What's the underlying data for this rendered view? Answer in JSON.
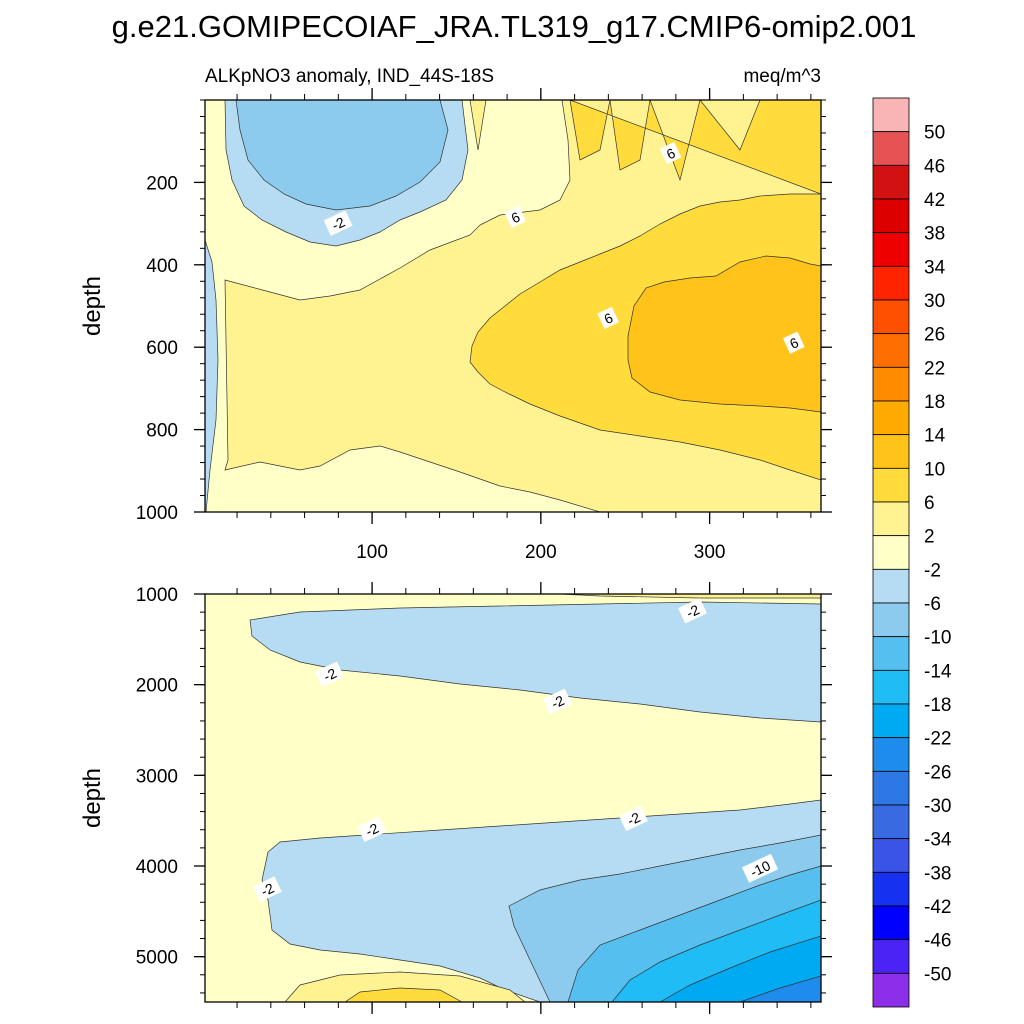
{
  "chart_data": {
    "type": "contour",
    "title": "g.e21.GOMIPECOIAF_JRA.TL319_g17.CMIP6-omip2.001",
    "subtitle_left": "ALKpNO3 anomaly, IND_44S-18S",
    "subtitle_right": "meq/m^3",
    "xlim": [
      1,
      366
    ],
    "colorbar": {
      "levels": [
        50,
        46,
        42,
        38,
        34,
        30,
        26,
        22,
        18,
        14,
        10,
        6,
        2,
        -2,
        -6,
        -10,
        -14,
        -18,
        -22,
        -26,
        -30,
        -34,
        -38,
        -42,
        -46,
        -50
      ],
      "level_labels": [
        "50",
        "46",
        "42",
        "38",
        "34",
        "30",
        "26",
        "22",
        "18",
        "14",
        "10",
        "6",
        "2",
        "-2",
        "-6",
        "-10",
        "-14",
        "-18",
        "-22",
        "-26",
        "-30",
        "-34",
        "-38",
        "-42",
        "-46",
        "-50"
      ],
      "colors": [
        "#F9B4B5",
        "#E65355",
        "#D21112",
        "#DD0000",
        "#EE0000",
        "#FF2400",
        "#FF5000",
        "#FF6E00",
        "#FF8C00",
        "#FFAA00",
        "#FFC31A",
        "#FFDB3C",
        "#FFF290",
        "#FFFFC8",
        "#B5DCF2",
        "#8CCBED",
        "#55BFF0",
        "#20BCF5",
        "#00AAF3",
        "#1E8CEC",
        "#2E78E6",
        "#3A6AE2",
        "#3A54E8",
        "#1632F0",
        "#0000FF",
        "#4B23F5",
        "#8C2EEA"
      ]
    },
    "panels": [
      {
        "name": "upper",
        "ylabel": "depth",
        "ylim": [
          0,
          1000
        ],
        "yticks": [
          200,
          400,
          600,
          800,
          1000
        ],
        "ytick_labels": [
          "200",
          "400",
          "600",
          "800",
          "1000"
        ],
        "xticks": [
          100,
          200,
          300
        ],
        "xtick_labels": [
          "100",
          "200",
          "300"
        ],
        "contour_labels": [
          {
            "text": "-2",
            "x": 80,
            "y": 300
          },
          {
            "text": "6",
            "x": 277,
            "y": 130
          },
          {
            "text": "6",
            "x": 185,
            "y": 285
          },
          {
            "text": "6",
            "x": 240,
            "y": 530
          },
          {
            "text": "6",
            "x": 350,
            "y": 590
          }
        ]
      },
      {
        "name": "lower",
        "ylabel": "depth",
        "ylim": [
          1000,
          5500
        ],
        "yticks": [
          1000,
          2000,
          3000,
          4000,
          5000
        ],
        "ytick_labels": [
          "1000",
          "2000",
          "3000",
          "4000",
          "5000"
        ],
        "contour_labels": [
          {
            "text": "-2",
            "x": 290,
            "y": 1190
          },
          {
            "text": "-2",
            "x": 75,
            "y": 1890
          },
          {
            "text": "-2",
            "x": 210,
            "y": 2190
          },
          {
            "text": "-2",
            "x": 255,
            "y": 3480
          },
          {
            "text": "-2",
            "x": 100,
            "y": 3600
          },
          {
            "text": "-10",
            "x": 330,
            "y": 4030
          },
          {
            "text": "-2",
            "x": 38,
            "y": 4260
          }
        ]
      }
    ]
  }
}
